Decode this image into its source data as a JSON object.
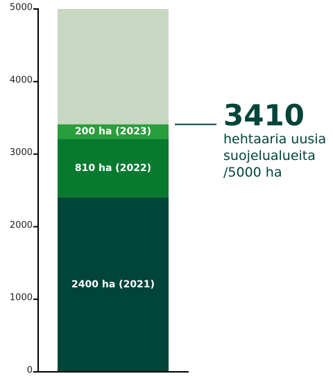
{
  "chart_data": {
    "type": "stacked_bar",
    "series": [
      {
        "color": "#00443a",
        "values": [
          2400
        ],
        "value_labels": [
          "2400 ha (2021)"
        ]
      },
      {
        "color": "#087a30",
        "values": [
          810
        ],
        "value_labels": [
          "810 ha (2022)"
        ]
      },
      {
        "color": "#2a9d3c",
        "values": [
          200
        ],
        "value_labels": [
          "200 ha (2023)"
        ]
      }
    ],
    "target": 5000,
    "target_color": "#c7d7c1",
    "ylim": [
      0,
      5000
    ],
    "yticks": [
      0,
      1000,
      2000,
      3000,
      4000,
      5000
    ],
    "annotation": {
      "value": 3410,
      "text": [
        "hehtaaria uusia",
        "suojelualueita",
        "/5000 ha"
      ]
    }
  }
}
